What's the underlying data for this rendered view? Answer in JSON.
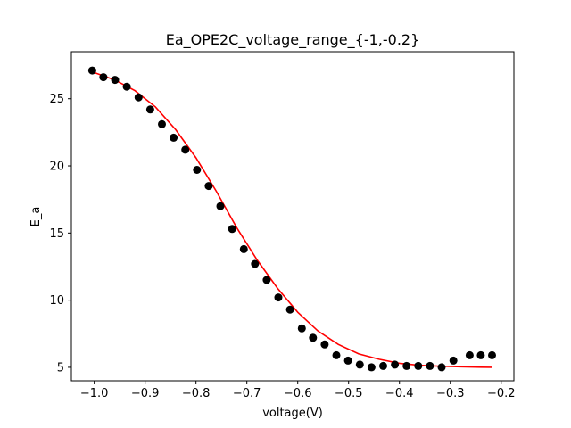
{
  "chart_data": {
    "type": "scatter",
    "title": "Ea_OPE2C_voltage_range_{-1,-0.2}",
    "xlabel": "voltage(V)",
    "ylabel": "E_a",
    "xlim": [
      -1.045,
      -0.175
    ],
    "ylim": [
      4.0,
      28.5
    ],
    "xticks": [
      -1.0,
      -0.9,
      -0.8,
      -0.7,
      -0.6,
      -0.5,
      -0.4,
      -0.3,
      -0.2
    ],
    "xtick_labels": [
      "−1.0",
      "−0.9",
      "−0.8",
      "−0.7",
      "−0.6",
      "−0.5",
      "−0.4",
      "−0.3",
      "−0.2"
    ],
    "yticks": [
      5,
      10,
      15,
      20,
      25
    ],
    "ytick_labels": [
      "5",
      "10",
      "15",
      "20",
      "25"
    ],
    "grid": false,
    "series": [
      {
        "kind": "scatter",
        "color": "#000000",
        "x": [
          -1.004,
          -0.982,
          -0.959,
          -0.936,
          -0.913,
          -0.89,
          -0.867,
          -0.844,
          -0.821,
          -0.798,
          -0.775,
          -0.752,
          -0.729,
          -0.706,
          -0.684,
          -0.661,
          -0.638,
          -0.615,
          -0.592,
          -0.57,
          -0.547,
          -0.524,
          -0.501,
          -0.478,
          -0.455,
          -0.432,
          -0.409,
          -0.386,
          -0.363,
          -0.34,
          -0.317,
          -0.294,
          -0.262,
          -0.24,
          -0.218
        ],
        "y": [
          27.1,
          26.6,
          26.4,
          25.9,
          25.1,
          24.2,
          23.1,
          22.1,
          21.2,
          19.7,
          18.5,
          17.0,
          15.3,
          13.8,
          12.7,
          11.5,
          10.2,
          9.3,
          7.9,
          7.2,
          6.7,
          5.9,
          5.5,
          5.2,
          5.0,
          5.1,
          5.2,
          5.1,
          5.1,
          5.1,
          5.0,
          5.5,
          5.9,
          5.9,
          5.9
        ]
      },
      {
        "kind": "line",
        "color": "#ff0000",
        "x": [
          -1.004,
          -0.96,
          -0.92,
          -0.88,
          -0.84,
          -0.8,
          -0.76,
          -0.72,
          -0.68,
          -0.64,
          -0.6,
          -0.56,
          -0.52,
          -0.48,
          -0.44,
          -0.4,
          -0.36,
          -0.32,
          -0.28,
          -0.24,
          -0.218
        ],
        "y": [
          27.0,
          26.4,
          25.6,
          24.4,
          22.7,
          20.6,
          18.1,
          15.4,
          13.0,
          10.9,
          9.1,
          7.7,
          6.7,
          6.0,
          5.6,
          5.3,
          5.15,
          5.08,
          5.04,
          5.01,
          5.0
        ]
      }
    ]
  }
}
